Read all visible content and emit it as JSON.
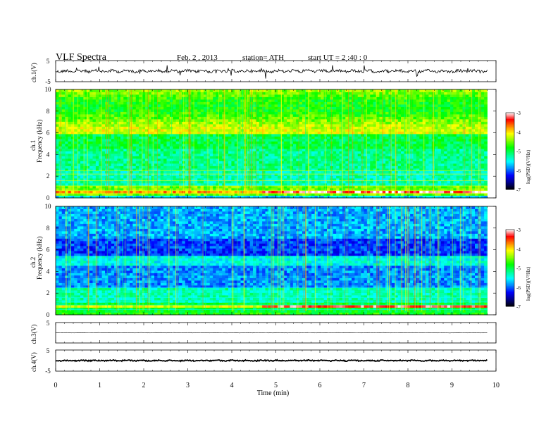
{
  "header": {
    "title": "VLF  Spectra",
    "date": "Feb. 2  , 2013",
    "station": "station= ATH",
    "start": "start  UT  =   2  :40 : 0"
  },
  "chart_data": [
    {
      "type": "line",
      "name": "waveform-ch1",
      "ylabel": "ch.1(V)",
      "ylim": [
        -5,
        5
      ],
      "yticks": [
        "5",
        "-5"
      ],
      "xlim": [
        0,
        9.8
      ],
      "description_values": {
        "baseline": 0,
        "typical_amplitude": 0.8,
        "spike_max": 2.5
      }
    },
    {
      "type": "heatmap",
      "name": "spectrogram-ch1",
      "ylabel": "Frequency  (kHz)",
      "channel_label": "ch.1",
      "ylim": [
        0,
        10
      ],
      "yticks": [
        "0",
        "2",
        "4",
        "6",
        "8",
        "10"
      ],
      "colorbar": {
        "label": "log(PSD)(V²/Hz)",
        "range": [
          -7,
          -3
        ],
        "ticks": [
          "-3",
          "-4",
          "-5",
          "-6",
          "-7"
        ]
      }
    },
    {
      "type": "heatmap",
      "name": "spectrogram-ch2",
      "ylabel": "Frequency  (kHz)",
      "channel_label": "ch.2",
      "ylim": [
        0,
        10
      ],
      "yticks": [
        "0",
        "2",
        "4",
        "6",
        "8",
        "10"
      ],
      "colorbar": {
        "label": "log(PSD)(V²/Hz)",
        "range": [
          -7,
          -3
        ],
        "ticks": [
          "-3",
          "-4",
          "-5",
          "-6",
          "-7"
        ]
      }
    },
    {
      "type": "line",
      "name": "waveform-ch3",
      "ylabel": "ch.3(V)",
      "ylim": [
        -5,
        5
      ],
      "yticks": [
        "5",
        "-5"
      ],
      "description_values": {
        "baseline": 0,
        "typical_amplitude": 0.1
      }
    },
    {
      "type": "line",
      "name": "waveform-ch4",
      "ylabel": "ch.4(V)",
      "ylim": [
        -5,
        5
      ],
      "yticks": [
        "5",
        "-5"
      ],
      "description_values": {
        "baseline": 0,
        "typical_amplitude": 0.2
      }
    }
  ],
  "xaxis": {
    "label": "Time  (min)",
    "ticks": [
      "0",
      "1",
      "2",
      "3",
      "4",
      "5",
      "6",
      "7",
      "8",
      "9",
      "10"
    ],
    "xlim": [
      0,
      10
    ],
    "data_end": 9.8
  },
  "colors": {
    "colormap": [
      "#000000",
      "#00008c",
      "#0000ff",
      "#0087ff",
      "#00ffff",
      "#00ff87",
      "#00ff00",
      "#87ff00",
      "#ffff00",
      "#ff8700",
      "#ff0000",
      "#ffffff"
    ]
  }
}
